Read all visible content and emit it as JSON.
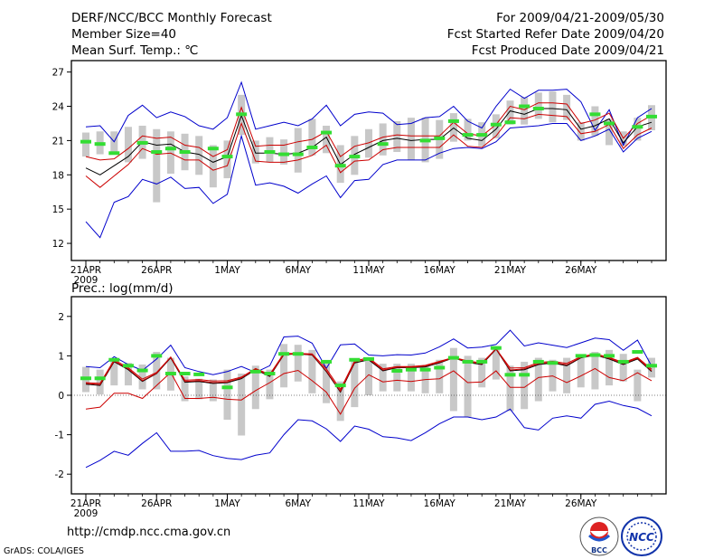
{
  "header": {
    "title": "DERF/NCC/BCC Monthly Forecast",
    "member_size": "Member Size=40",
    "variable": "Mean Surf. Temp.: ℃",
    "period": "For 2009/04/21-2009/05/30",
    "refer_date": "Fcst Started Refer Date 2009/04/20",
    "produced_date": "Fcst Produced Date 2009/04/21"
  },
  "precip_label": "Prec.: log(mm/d)",
  "footer": {
    "url": "http://cmdp.ncc.cma.gov.cn",
    "grads": "GrADS: COLA/IGES",
    "logo1_text": "BCC",
    "logo2_text": "NCC"
  },
  "colors": {
    "envelope": "#0000cc",
    "mean": "#000000",
    "spread": "#cc0000",
    "obs": "#33dd33",
    "box": "#c8c8c8"
  },
  "chart_data": [
    {
      "type": "line",
      "title": "Mean Surf. Temp.: ℃",
      "x_labels": [
        "21APR",
        "26APR",
        "1MAY",
        "6MAY",
        "11MAY",
        "16MAY",
        "21MAY",
        "26MAY"
      ],
      "x_label_days": [
        0,
        5,
        10,
        15,
        20,
        25,
        30,
        35
      ],
      "year_label": "2009",
      "ylim": [
        10.5,
        28
      ],
      "yticks": [
        12,
        15,
        18,
        21,
        24,
        27
      ],
      "series": [
        {
          "name": "max",
          "values": [
            22.2,
            22.3,
            20.9,
            23.2,
            24.1,
            23.0,
            23.5,
            23.1,
            22.3,
            22.0,
            23.0,
            26.1,
            22.0,
            22.3,
            22.6,
            22.3,
            22.9,
            24.1,
            22.3,
            23.3,
            23.5,
            23.4,
            22.4,
            22.5,
            23.0,
            23.1,
            24.0,
            22.7,
            22.1,
            24.0,
            25.5,
            24.7,
            25.4,
            25.4,
            25.5,
            24.4,
            21.9,
            23.7,
            20.6,
            23.0,
            23.8
          ]
        },
        {
          "name": "q_upper",
          "values": [
            19.6,
            19.3,
            19.4,
            20.3,
            21.4,
            21.2,
            21.3,
            20.6,
            20.4,
            19.6,
            20.2,
            23.9,
            20.5,
            20.6,
            20.6,
            20.9,
            21.1,
            21.8,
            19.6,
            20.5,
            20.8,
            21.3,
            21.5,
            21.4,
            21.4,
            21.4,
            22.6,
            21.6,
            21.4,
            22.4,
            24.0,
            23.7,
            24.3,
            24.3,
            24.2,
            22.5,
            22.8,
            23.4,
            21.2,
            22.5,
            23.2
          ]
        },
        {
          "name": "mean",
          "values": [
            18.6,
            18.0,
            18.8,
            19.6,
            20.9,
            20.6,
            20.7,
            20.0,
            19.8,
            19.1,
            19.6,
            23.2,
            19.9,
            19.9,
            19.8,
            19.9,
            20.4,
            21.3,
            18.9,
            19.8,
            20.4,
            21.0,
            21.2,
            21.0,
            21.1,
            21.1,
            22.1,
            21.2,
            21.0,
            22.0,
            23.6,
            23.3,
            23.8,
            23.8,
            23.7,
            22.0,
            22.3,
            22.9,
            20.8,
            22.2,
            22.6
          ]
        },
        {
          "name": "q_lower",
          "values": [
            17.9,
            16.9,
            17.9,
            18.9,
            20.3,
            19.8,
            19.9,
            19.3,
            19.3,
            18.4,
            18.8,
            22.5,
            19.2,
            19.1,
            19.1,
            19.3,
            19.7,
            20.6,
            18.2,
            19.2,
            19.3,
            20.2,
            20.4,
            20.4,
            20.4,
            20.4,
            21.5,
            20.5,
            20.4,
            21.4,
            23.0,
            22.9,
            23.3,
            23.2,
            23.1,
            21.6,
            21.8,
            22.4,
            20.3,
            21.5,
            22.1
          ]
        },
        {
          "name": "min",
          "values": [
            13.9,
            12.5,
            15.6,
            16.1,
            17.6,
            17.2,
            17.8,
            16.8,
            16.9,
            15.5,
            16.3,
            21.4,
            17.1,
            17.3,
            17.0,
            16.4,
            17.2,
            17.9,
            16.0,
            17.5,
            17.6,
            18.9,
            19.3,
            19.3,
            19.3,
            19.9,
            20.3,
            20.4,
            20.3,
            20.9,
            22.1,
            22.2,
            22.3,
            22.5,
            22.5,
            21.0,
            21.4,
            22.0,
            20.0,
            21.2,
            21.8
          ]
        }
      ],
      "boxes": [
        [
          19.6,
          21.7
        ],
        [
          19.8,
          21.8
        ],
        [
          20.0,
          21.8
        ],
        [
          19.1,
          22.2
        ],
        [
          19.4,
          22.3
        ],
        [
          15.6,
          22.0
        ],
        [
          18.1,
          21.8
        ],
        [
          18.4,
          21.6
        ],
        [
          18.0,
          21.4
        ],
        [
          16.9,
          20.6
        ],
        [
          17.7,
          21.0
        ],
        [
          21.5,
          25.0
        ],
        [
          19.0,
          21.0
        ],
        [
          19.1,
          21.3
        ],
        [
          18.9,
          21.1
        ],
        [
          18.2,
          22.1
        ],
        [
          19.7,
          22.9
        ],
        [
          19.9,
          22.3
        ],
        [
          17.3,
          20.6
        ],
        [
          18.0,
          21.4
        ],
        [
          19.5,
          22.0
        ],
        [
          19.7,
          22.5
        ],
        [
          20.0,
          22.7
        ],
        [
          19.3,
          23.0
        ],
        [
          19.1,
          23.0
        ],
        [
          19.4,
          22.8
        ],
        [
          20.9,
          23.4
        ],
        [
          21.0,
          22.9
        ],
        [
          20.5,
          22.6
        ],
        [
          21.2,
          23.3
        ],
        [
          22.4,
          24.5
        ],
        [
          22.4,
          24.8
        ],
        [
          22.9,
          25.2
        ],
        [
          22.6,
          25.3
        ],
        [
          22.8,
          25.0
        ],
        [
          21.0,
          22.6
        ],
        [
          21.4,
          24.0
        ],
        [
          20.6,
          22.9
        ],
        [
          20.5,
          21.8
        ],
        [
          21.0,
          23.0
        ],
        [
          21.9,
          24.1
        ]
      ],
      "observed": [
        20.9,
        20.7,
        19.9,
        null,
        20.8,
        20.0,
        20.3,
        20.0,
        null,
        20.3,
        19.6,
        23.3,
        null,
        20.0,
        19.8,
        19.8,
        20.4,
        21.7,
        18.8,
        19.6,
        null,
        20.7,
        null,
        null,
        21.0,
        21.2,
        22.7,
        21.5,
        21.5,
        22.4,
        22.6,
        24.0,
        23.8,
        null,
        null,
        null,
        23.3,
        22.5,
        null,
        22.2,
        23.1
      ]
    },
    {
      "type": "line",
      "title": "Prec.: log(mm/d)",
      "x_labels": [
        "21APR",
        "26APR",
        "1MAY",
        "6MAY",
        "11MAY",
        "16MAY",
        "21MAY",
        "26MAY"
      ],
      "x_label_days": [
        0,
        5,
        10,
        15,
        20,
        25,
        30,
        35
      ],
      "year_label": "2009",
      "ylim": [
        -2.5,
        2.5
      ],
      "yticks": [
        -2,
        -1,
        0,
        1,
        2
      ],
      "series": [
        {
          "name": "max",
          "values": [
            0.73,
            0.7,
            0.98,
            0.78,
            0.63,
            0.92,
            1.27,
            0.7,
            0.6,
            0.52,
            0.6,
            0.73,
            0.58,
            0.75,
            1.48,
            1.5,
            1.32,
            0.68,
            1.28,
            1.3,
            1.02,
            1.0,
            1.03,
            1.02,
            1.07,
            1.23,
            1.43,
            1.2,
            1.22,
            1.29,
            1.65,
            1.25,
            1.33,
            1.27,
            1.21,
            1.33,
            1.45,
            1.41,
            1.14,
            1.4,
            0.74
          ]
        },
        {
          "name": "q_upper",
          "values": [
            0.32,
            0.3,
            0.9,
            0.7,
            0.41,
            0.58,
            0.97,
            0.38,
            0.4,
            0.36,
            0.37,
            0.46,
            0.68,
            0.53,
            1.06,
            1.06,
            1.05,
            0.67,
            0.15,
            0.87,
            0.95,
            0.67,
            0.73,
            0.73,
            0.76,
            0.86,
            0.96,
            0.87,
            0.82,
            1.18,
            0.69,
            0.7,
            0.83,
            0.86,
            0.81,
            0.98,
            1.05,
            0.96,
            0.83,
            0.96,
            0.66
          ]
        },
        {
          "name": "mean",
          "values": [
            0.28,
            0.25,
            0.85,
            0.65,
            0.35,
            0.55,
            0.95,
            0.33,
            0.35,
            0.3,
            0.32,
            0.42,
            0.65,
            0.48,
            1.03,
            1.05,
            1.02,
            0.6,
            0.08,
            0.82,
            0.9,
            0.62,
            0.7,
            0.7,
            0.72,
            0.82,
            0.95,
            0.83,
            0.78,
            1.17,
            0.62,
            0.65,
            0.78,
            0.82,
            0.75,
            0.95,
            1.02,
            0.92,
            0.78,
            0.92,
            0.6
          ]
        },
        {
          "name": "q_lower",
          "values": [
            -0.35,
            -0.3,
            0.05,
            0.05,
            -0.08,
            0.25,
            0.58,
            -0.08,
            -0.08,
            -0.05,
            -0.1,
            -0.12,
            0.12,
            0.32,
            0.55,
            0.63,
            0.37,
            0.08,
            -0.48,
            0.18,
            0.52,
            0.34,
            0.38,
            0.35,
            0.4,
            0.42,
            0.62,
            0.32,
            0.34,
            0.62,
            0.2,
            0.2,
            0.45,
            0.49,
            0.32,
            0.49,
            0.68,
            0.45,
            0.37,
            0.57,
            0.37
          ]
        },
        {
          "name": "min",
          "values": [
            -1.83,
            -1.65,
            -1.42,
            -1.52,
            -1.22,
            -0.95,
            -1.42,
            -1.42,
            -1.4,
            -1.53,
            -1.6,
            -1.63,
            -1.52,
            -1.46,
            -1.0,
            -0.62,
            -0.65,
            -0.85,
            -1.17,
            -0.78,
            -0.86,
            -1.05,
            -1.08,
            -1.15,
            -0.95,
            -0.72,
            -0.55,
            -0.55,
            -0.62,
            -0.55,
            -0.35,
            -0.82,
            -0.88,
            -0.58,
            -0.52,
            -0.58,
            -0.23,
            -0.15,
            -0.26,
            -0.33,
            -0.52
          ]
        },
        {
          "name": "mean_dark",
          "values": [
            0.3,
            0.27,
            0.87,
            0.67,
            0.37,
            0.56,
            0.96,
            0.35,
            0.37,
            0.32,
            0.34,
            0.44,
            0.66,
            0.5,
            1.04,
            1.05,
            1.03,
            0.62,
            0.1,
            0.84,
            0.92,
            0.64,
            0.71,
            0.71,
            0.74,
            0.84,
            0.95,
            0.85,
            0.8,
            1.18,
            0.64,
            0.67,
            0.8,
            0.84,
            0.77,
            0.96,
            1.03,
            0.94,
            0.8,
            0.94,
            0.62
          ]
        }
      ],
      "boxes": [
        [
          0.08,
          0.72
        ],
        [
          0.02,
          0.65
        ],
        [
          0.25,
          0.88
        ],
        [
          0.25,
          0.82
        ],
        [
          0.15,
          0.78
        ],
        [
          0.15,
          1.1
        ],
        [
          0.12,
          0.95
        ],
        [
          -0.15,
          0.48
        ],
        [
          -0.1,
          0.42
        ],
        [
          -0.15,
          0.4
        ],
        [
          -0.62,
          0.65
        ],
        [
          -1.02,
          0.55
        ],
        [
          -0.35,
          0.75
        ],
        [
          -0.1,
          0.65
        ],
        [
          0.2,
          1.3
        ],
        [
          0.35,
          1.28
        ],
        [
          0.05,
          1.15
        ],
        [
          -0.2,
          0.8
        ],
        [
          -0.65,
          0.35
        ],
        [
          -0.3,
          0.9
        ],
        [
          0.0,
          0.95
        ],
        [
          0.1,
          0.8
        ],
        [
          0.1,
          0.8
        ],
        [
          0.1,
          0.8
        ],
        [
          0.05,
          0.75
        ],
        [
          0.05,
          0.9
        ],
        [
          -0.4,
          1.2
        ],
        [
          -0.55,
          1.0
        ],
        [
          0.2,
          0.95
        ],
        [
          0.4,
          1.25
        ],
        [
          -0.4,
          0.75
        ],
        [
          -0.35,
          0.85
        ],
        [
          -0.15,
          0.95
        ],
        [
          0.1,
          0.9
        ],
        [
          0.05,
          0.95
        ],
        [
          0.2,
          1.0
        ],
        [
          0.15,
          1.1
        ],
        [
          0.25,
          1.15
        ],
        [
          0.35,
          1.05
        ],
        [
          -0.15,
          0.65
        ],
        [
          0.45,
          0.95
        ]
      ],
      "observed": [
        0.43,
        0.43,
        0.9,
        0.75,
        0.63,
        1.0,
        0.55,
        0.55,
        0.53,
        null,
        0.2,
        null,
        0.6,
        0.55,
        1.05,
        1.05,
        null,
        0.85,
        0.25,
        0.9,
        0.92,
        null,
        0.62,
        0.65,
        0.65,
        0.7,
        0.95,
        0.85,
        0.85,
        1.2,
        0.52,
        0.52,
        0.85,
        0.82,
        null,
        1.0,
        1.02,
        1.0,
        0.85,
        1.1,
        0.75
      ]
    }
  ]
}
